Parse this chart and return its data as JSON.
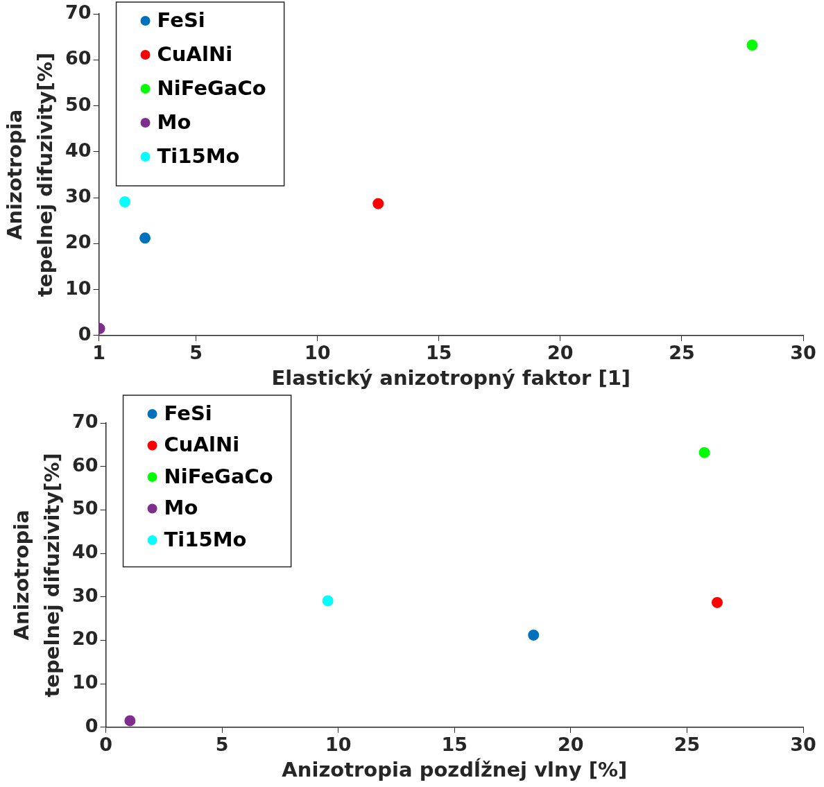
{
  "chart_data": [
    {
      "type": "scatter",
      "xlabel": "Elastický anizotropný faktor [1]",
      "ylabel": "Anizotropia\ntepelnej difuzivity[%]",
      "xlim": [
        1,
        30
      ],
      "xticks": [
        1,
        5,
        10,
        15,
        20,
        25,
        30
      ],
      "ylim": [
        0,
        70
      ],
      "yticks": [
        0,
        10,
        20,
        30,
        40,
        50,
        60,
        70
      ],
      "grid": false,
      "legend": "top left",
      "marker": "circle",
      "series": [
        {
          "name": "FeSi",
          "color": "#0072bd",
          "x": [
            2.9
          ],
          "values": [
            21.2
          ]
        },
        {
          "name": "CuAlNi",
          "color": "#ff0000",
          "x": [
            12.5
          ],
          "values": [
            28.7
          ]
        },
        {
          "name": "NiFeGaCo",
          "color": "#00ff00",
          "x": [
            27.9
          ],
          "values": [
            63.2
          ]
        },
        {
          "name": "Mo",
          "color": "#7e2f8e",
          "x": [
            1.03
          ],
          "values": [
            1.5
          ]
        },
        {
          "name": "Ti15Mo",
          "color": "#00ffff",
          "x": [
            2.07
          ],
          "values": [
            29.1
          ]
        }
      ]
    },
    {
      "type": "scatter",
      "xlabel": "Anizotropia pozdĺžnej vlny [%]",
      "ylabel": "Anizotropia\ntepelnej difuzivity[%]",
      "xlim": [
        0,
        30
      ],
      "xticks": [
        0,
        5,
        10,
        15,
        20,
        25,
        30
      ],
      "ylim": [
        0,
        70
      ],
      "yticks": [
        0,
        10,
        20,
        30,
        40,
        50,
        60,
        70
      ],
      "grid": false,
      "legend": "top left",
      "marker": "circle",
      "series": [
        {
          "name": "FeSi",
          "color": "#0072bd",
          "x": [
            18.4
          ],
          "values": [
            21.2
          ]
        },
        {
          "name": "CuAlNi",
          "color": "#ff0000",
          "x": [
            26.3
          ],
          "values": [
            28.7
          ]
        },
        {
          "name": "NiFeGaCo",
          "color": "#00ff00",
          "x": [
            25.75
          ],
          "values": [
            63.2
          ]
        },
        {
          "name": "Mo",
          "color": "#7e2f8e",
          "x": [
            1.04
          ],
          "values": [
            1.5
          ]
        },
        {
          "name": "Ti15Mo",
          "color": "#00ffff",
          "x": [
            9.55
          ],
          "values": [
            29.1
          ]
        }
      ]
    }
  ]
}
